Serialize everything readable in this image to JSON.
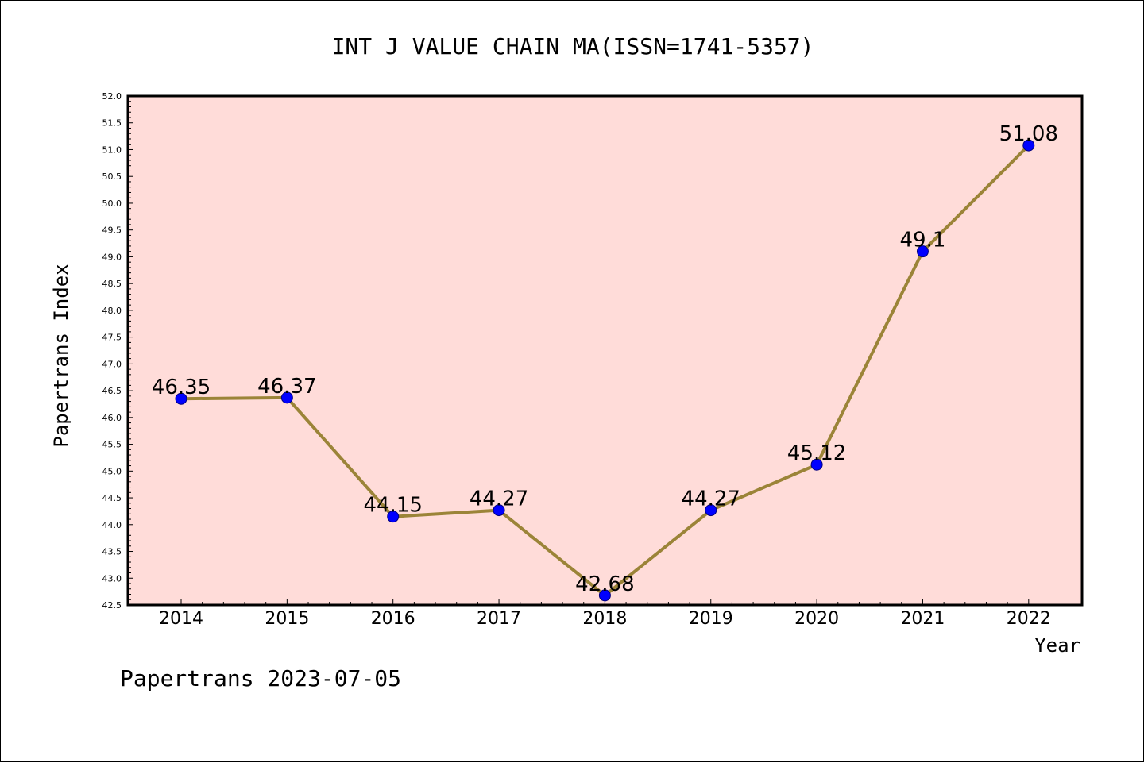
{
  "chart_data": {
    "type": "line",
    "title": "INT J VALUE CHAIN MA(ISSN=1741-5357)",
    "xlabel": "Year",
    "ylabel": "Papertrans Index",
    "categories": [
      "2014",
      "2015",
      "2016",
      "2017",
      "2018",
      "2019",
      "2020",
      "2021",
      "2022"
    ],
    "series": [
      {
        "values": [
          46.35,
          46.37,
          44.15,
          44.27,
          42.68,
          44.27,
          45.12,
          49.1,
          51.08
        ],
        "data_labels": [
          "46.35",
          "46.37",
          "44.15",
          "44.27",
          "42.68",
          "44.27",
          "45.12",
          "49.1",
          "51.08"
        ]
      }
    ],
    "ylim": [
      42.5,
      52.0
    ],
    "yticks": [
      "42.5",
      "43.0",
      "43.5",
      "44.0",
      "44.5",
      "45.0",
      "45.5",
      "46.0",
      "46.5",
      "47.0",
      "47.5",
      "48.0",
      "48.5",
      "49.0",
      "49.5",
      "50.0",
      "50.5",
      "51.0",
      "51.5",
      "52.0"
    ],
    "grid": false,
    "legend": "none",
    "colors": {
      "plot_background": "#ffdcd9",
      "line": "#9b8438",
      "marker": "#0000ff",
      "marker_edge": "#000080"
    }
  },
  "footer": {
    "watermark": "Papertrans 2023-07-05"
  }
}
